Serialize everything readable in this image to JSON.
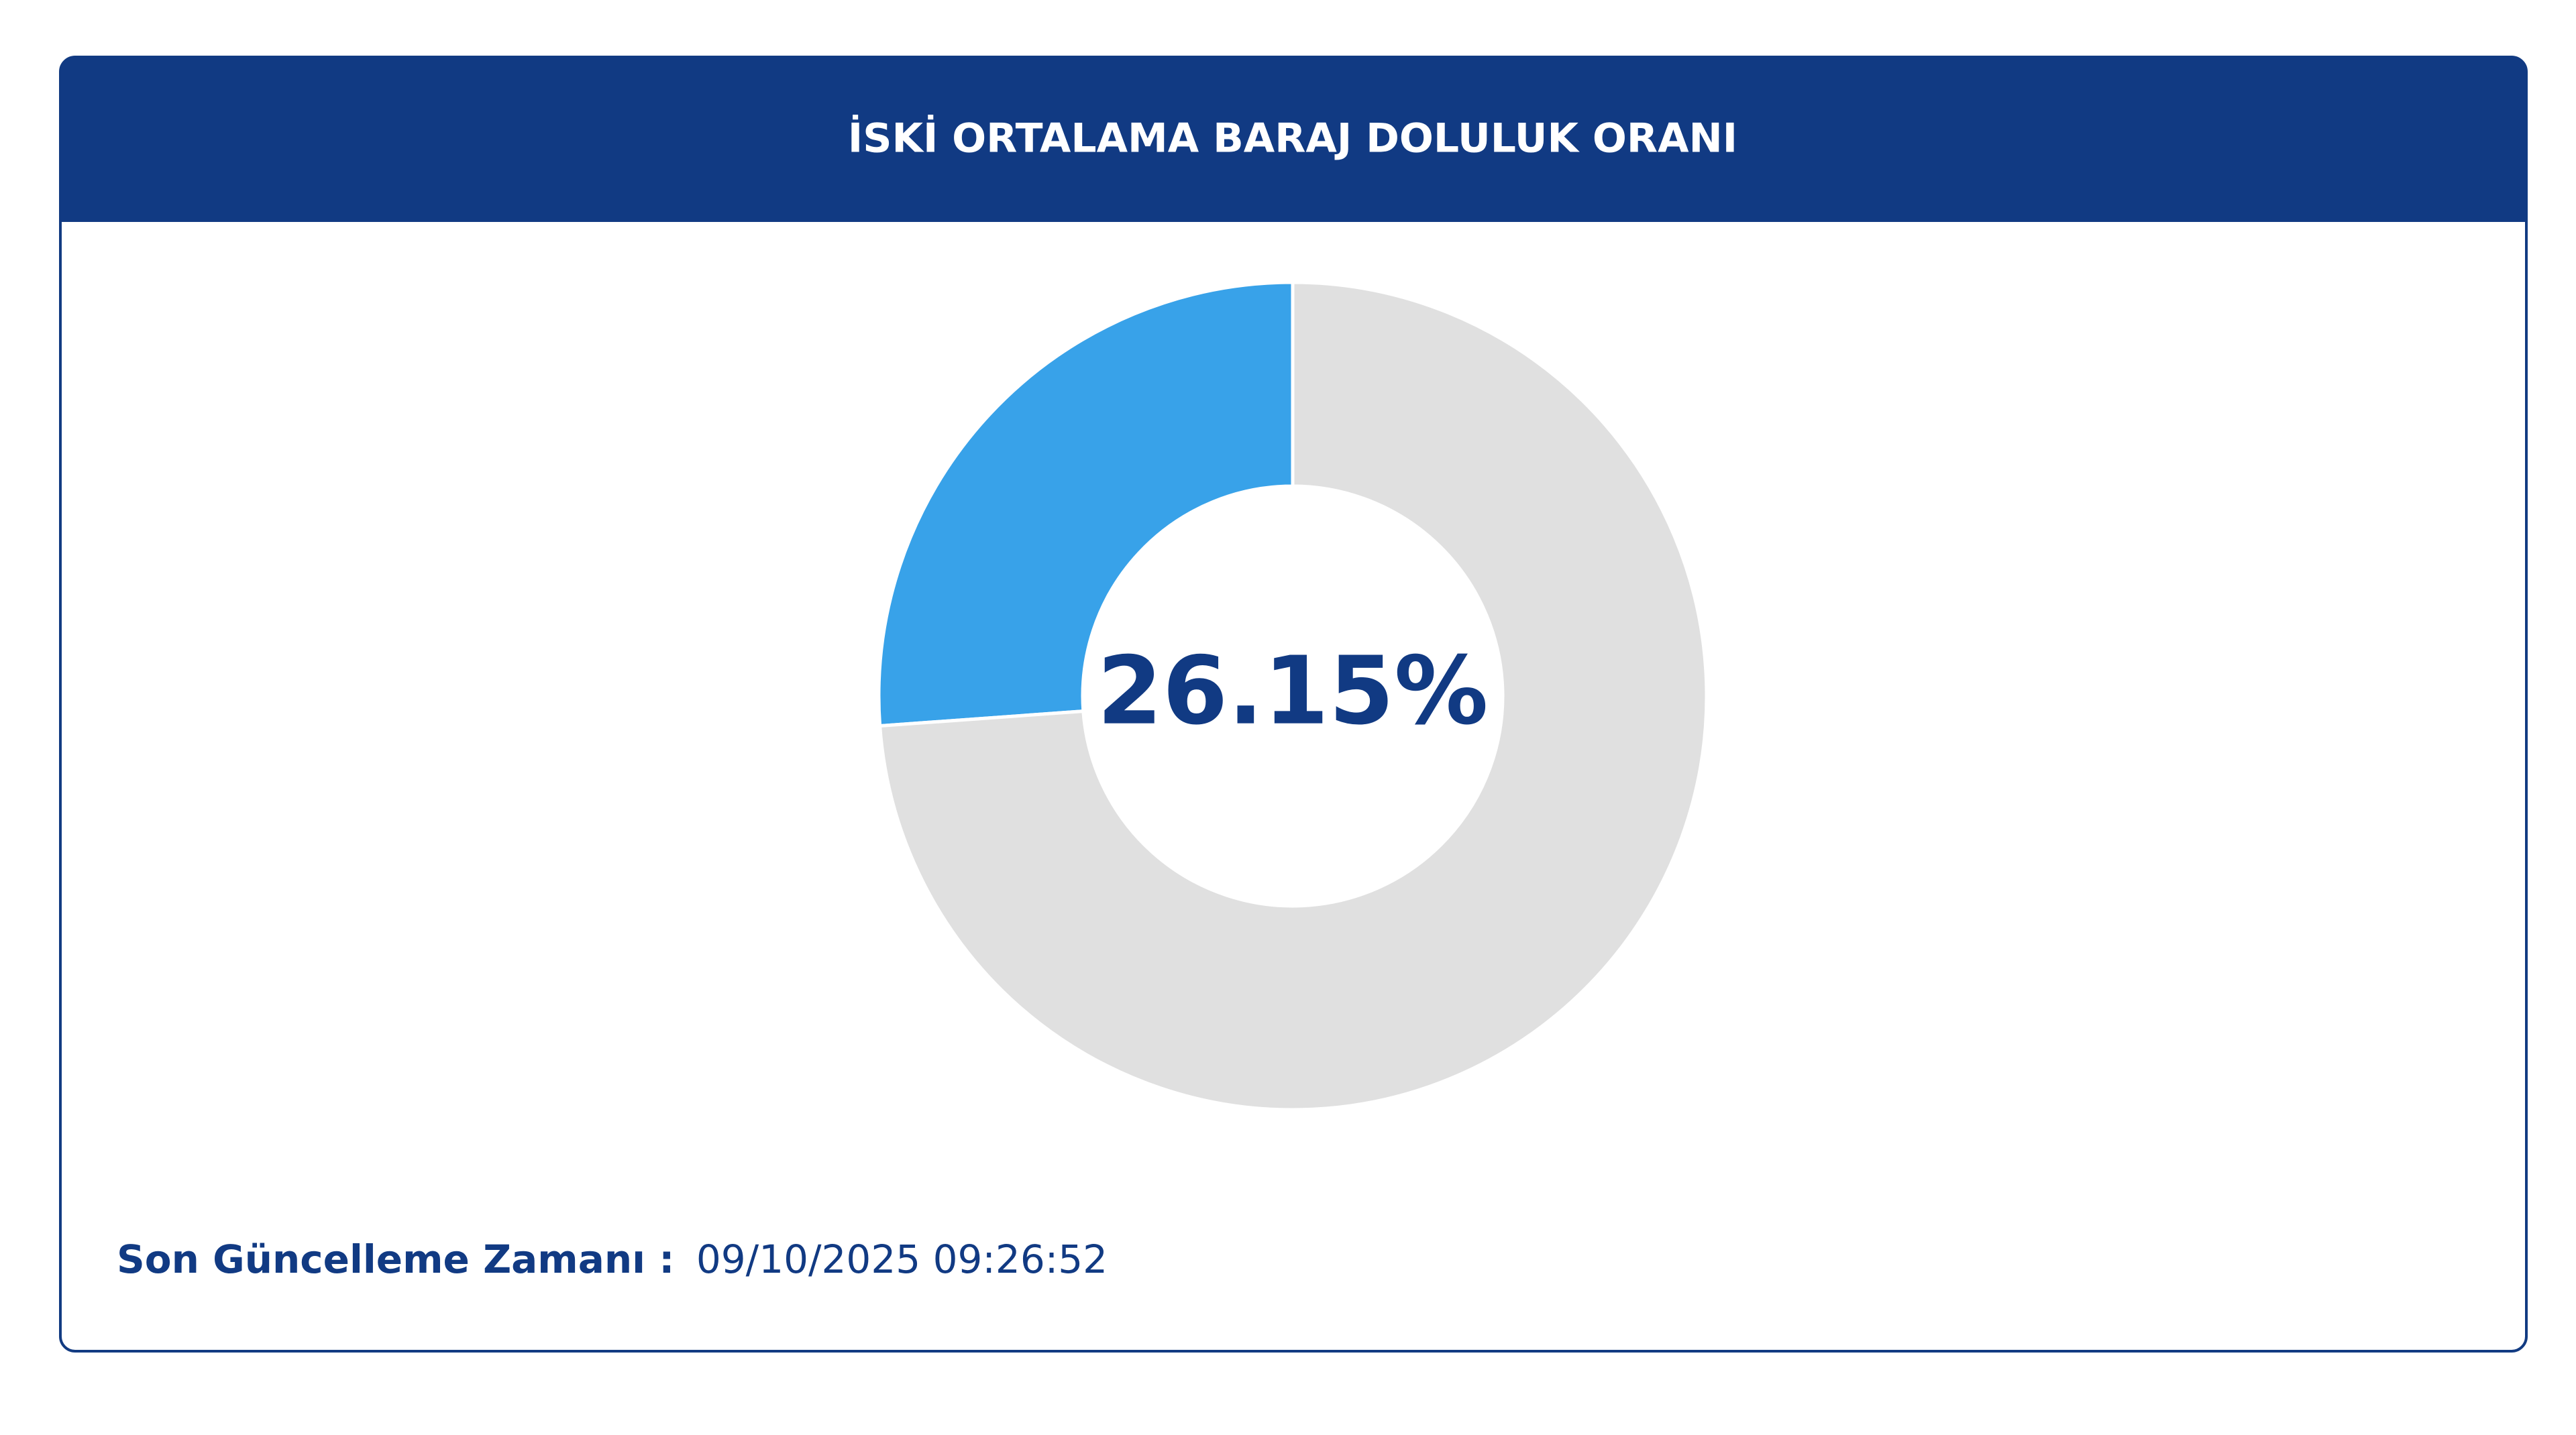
{
  "chart_data": {
    "type": "donut",
    "title": "İSKİ ORTALAMA BARAJ DOLULUK ORANI",
    "values": [
      26.15,
      73.85
    ],
    "value_labels": [
      "26.15%",
      null
    ],
    "colors": [
      "#38a2e9",
      "#e0e0e0"
    ],
    "footer_label": "Son Güncelleme Zamanı :",
    "updated": "09/10/2025 09:26:52"
  }
}
